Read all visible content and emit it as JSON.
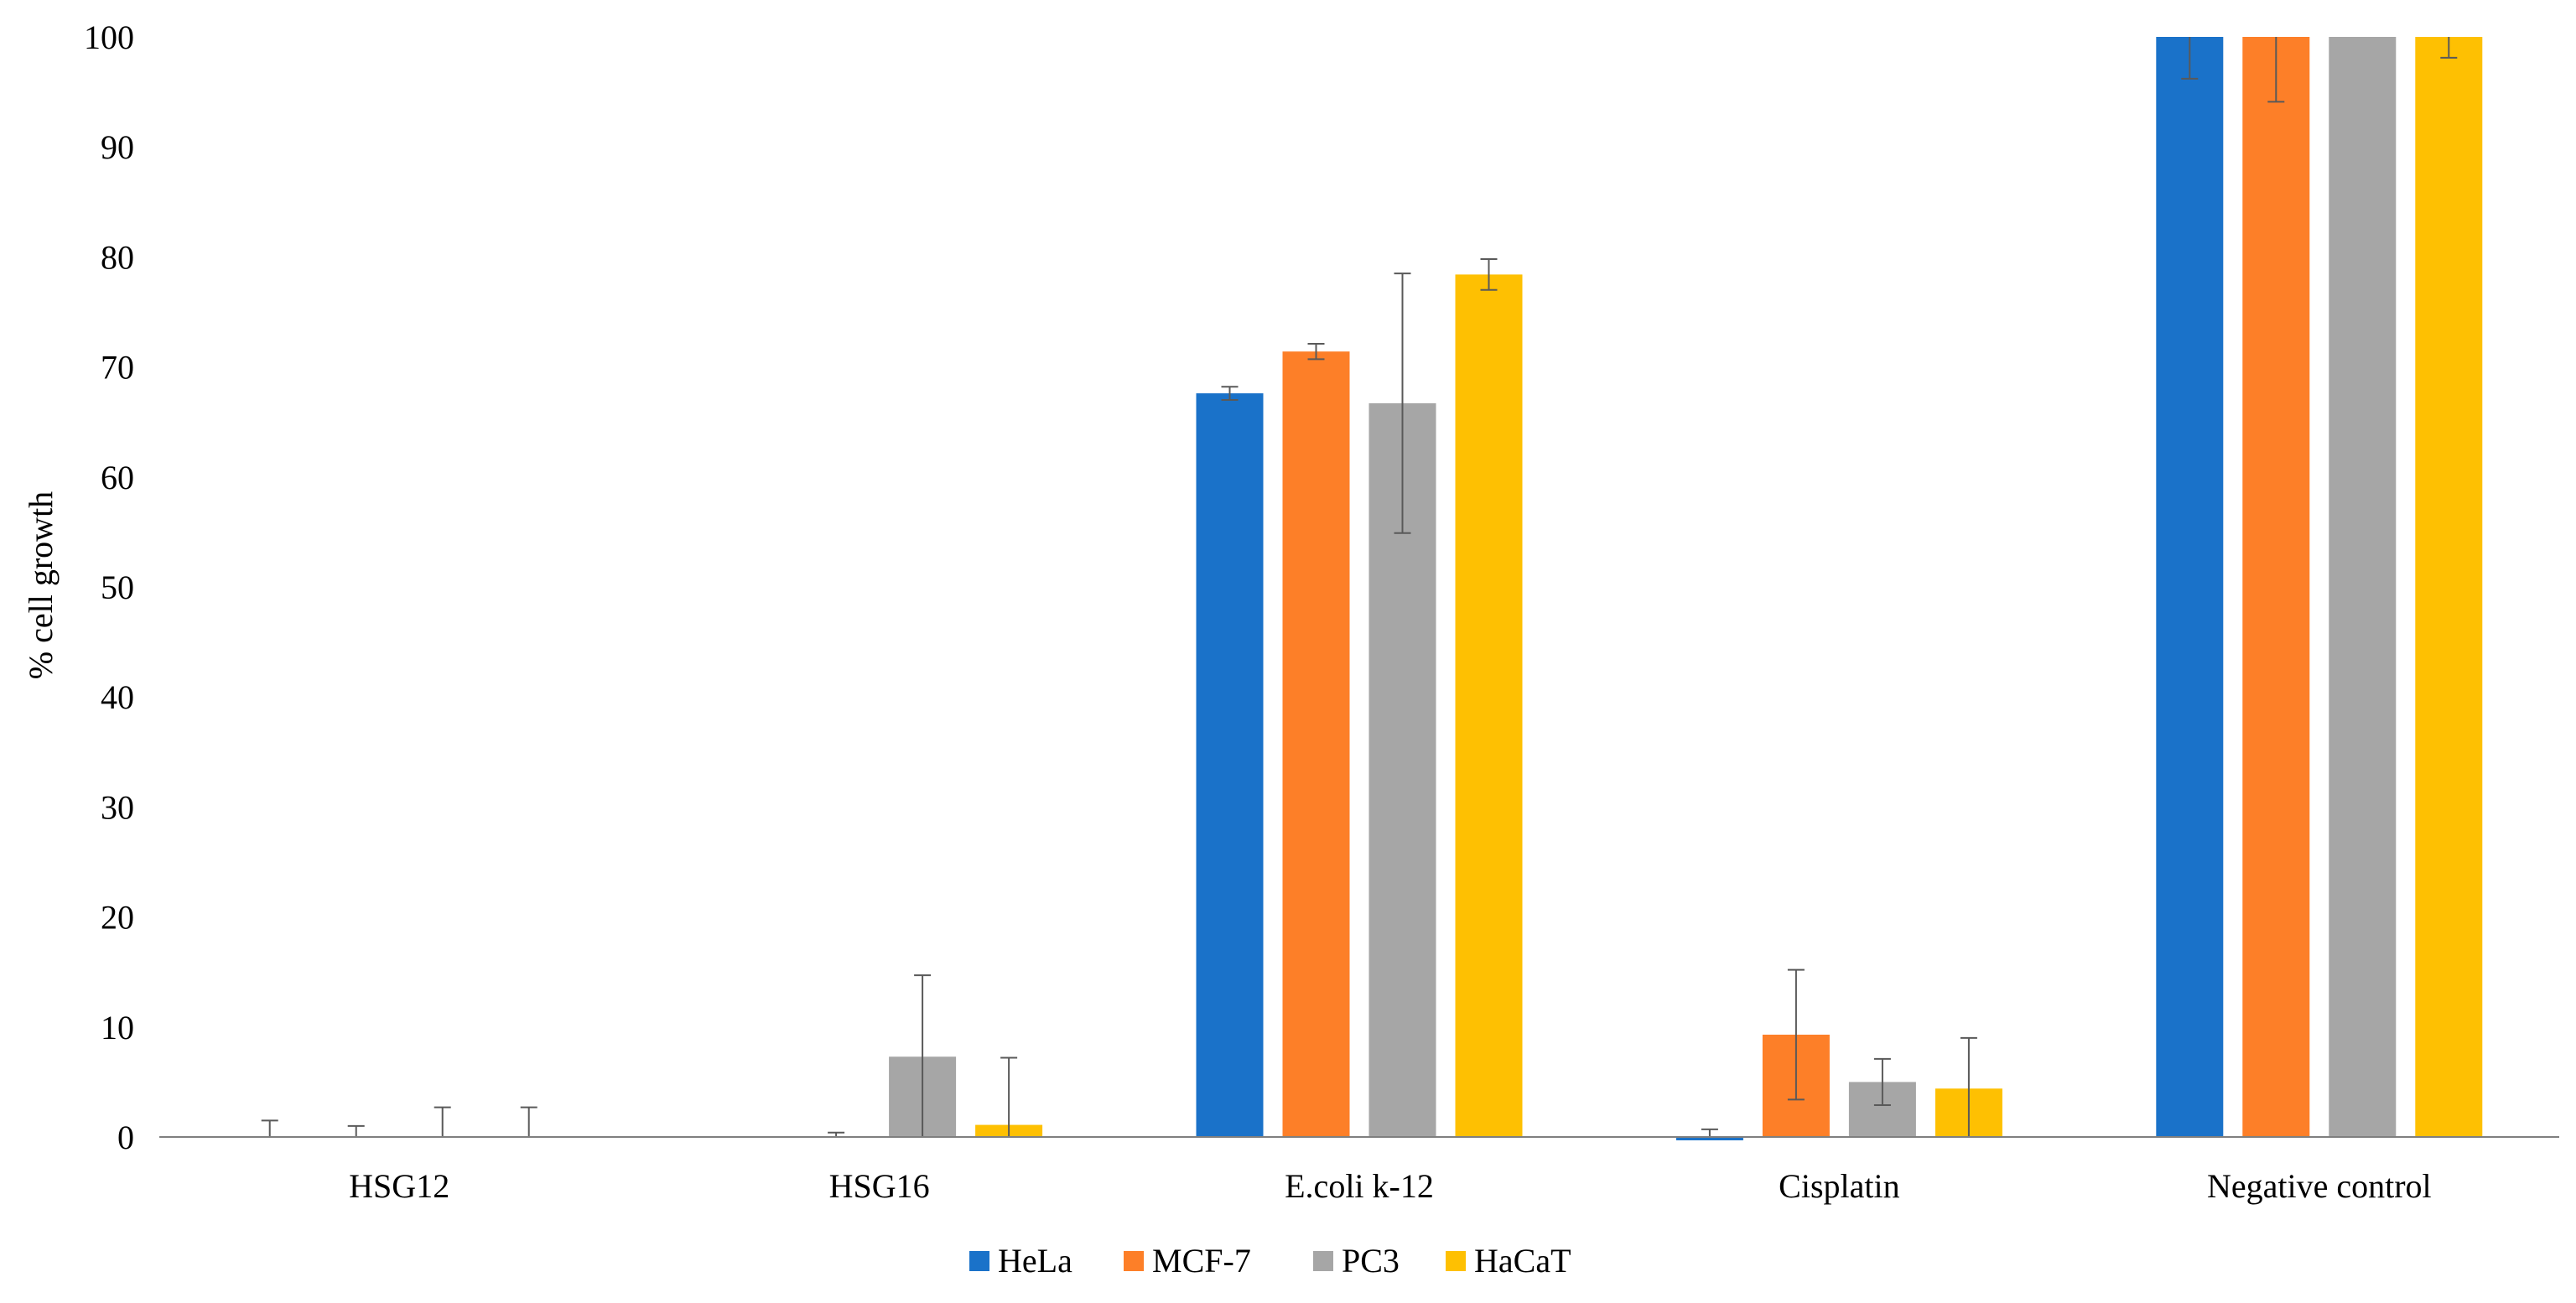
{
  "chart_data": {
    "type": "bar",
    "title": "",
    "xlabel": "",
    "ylabel": "% cell growth",
    "ylim": [
      0,
      100
    ],
    "yticks": [
      0,
      10,
      20,
      30,
      40,
      50,
      60,
      70,
      80,
      90,
      100
    ],
    "grid": false,
    "legend_position": "bottom",
    "categories": [
      "HSG12",
      "HSG16",
      "E.coli k-12",
      "Cisplatin",
      "Negative control"
    ],
    "series": [
      {
        "name": "HeLa",
        "color": "#1a72c9",
        "values": [
          0,
          0,
          67.6,
          -0.2,
          100
        ],
        "errors": [
          1.5,
          0,
          0.6,
          0.9,
          3.8
        ]
      },
      {
        "name": "MCF-7",
        "color": "#fd7f28",
        "values": [
          0,
          0,
          71.4,
          9.3,
          100
        ],
        "errors": [
          1.0,
          0.4,
          0.7,
          5.9,
          5.9
        ]
      },
      {
        "name": "PC3",
        "color": "#a6a6a6",
        "values": [
          0,
          7.3,
          66.7,
          5.0,
          100
        ],
        "errors": [
          2.7,
          7.4,
          11.8,
          2.1,
          0
        ]
      },
      {
        "name": "HaCaT",
        "color": "#fec002",
        "values": [
          0,
          1.1,
          78.4,
          4.4,
          100
        ],
        "errors": [
          2.7,
          6.1,
          1.4,
          4.6,
          1.9
        ]
      }
    ]
  }
}
